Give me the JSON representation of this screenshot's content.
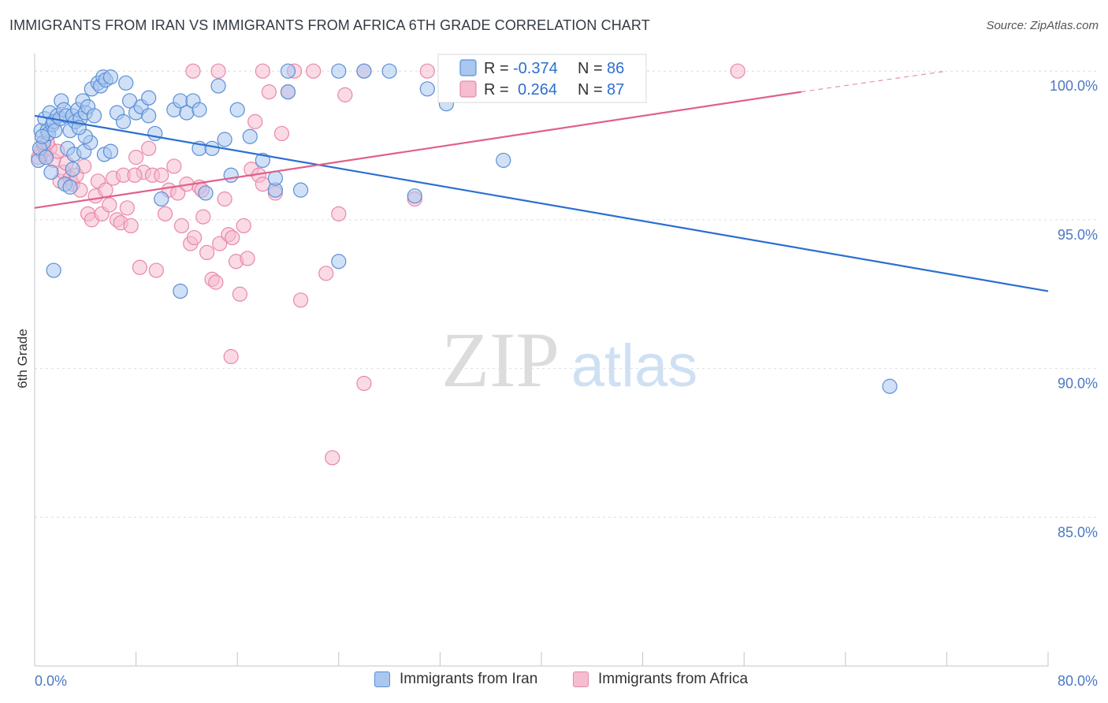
{
  "title": "IMMIGRANTS FROM IRAN VS IMMIGRANTS FROM AFRICA 6TH GRADE CORRELATION CHART",
  "source": "Source: ZipAtlas.com",
  "watermark": {
    "zip": "ZIP",
    "atlas": "atlas"
  },
  "colors": {
    "iran_fill": "#a9c7ef",
    "iran_stroke": "#5b8fd6",
    "iran_line": "#2b6fd0",
    "africa_fill": "#f6bcd0",
    "africa_stroke": "#e888a8",
    "africa_line": "#e0608b",
    "tick_label": "#4a78c4",
    "grid": "#d9dde3"
  },
  "legend": {
    "row1": {
      "r_label": "R =",
      "r_value": "-0.374",
      "n_label": "N =",
      "n_value": "86"
    },
    "row2": {
      "r_label": "R =",
      "r_value": "0.264",
      "n_label": "N =",
      "n_value": "87"
    }
  },
  "bottom_legend": {
    "iran": "Immigrants from Iran",
    "africa": "Immigrants from Africa"
  },
  "chart_data": {
    "type": "scatter",
    "title": "IMMIGRANTS FROM IRAN VS IMMIGRANTS FROM AFRICA 6TH GRADE CORRELATION CHART",
    "xlabel": "",
    "ylabel": "6th Grade",
    "xlim": [
      0,
      80
    ],
    "ylim": [
      80,
      100.8
    ],
    "x_tick_labels": [
      "0.0%",
      "80.0%"
    ],
    "y_ticks": [
      85,
      90,
      95,
      100
    ],
    "y_tick_labels": [
      "85.0%",
      "90.0%",
      "95.0%",
      "100.0%"
    ],
    "grid": true,
    "legend_position": "top-center",
    "series": [
      {
        "name": "Immigrants from Iran",
        "r": -0.374,
        "n": 86,
        "trend": {
          "x0": 0,
          "y0": 98.5,
          "x1": 80,
          "y1": 92.6
        },
        "points": [
          [
            0.3,
            97.0
          ],
          [
            0.5,
            98.0
          ],
          [
            0.7,
            97.6
          ],
          [
            0.8,
            98.4
          ],
          [
            1.0,
            98.0
          ],
          [
            1.1,
            97.9
          ],
          [
            1.2,
            98.6
          ],
          [
            1.4,
            98.2
          ],
          [
            1.5,
            98.3
          ],
          [
            1.6,
            98.0
          ],
          [
            1.8,
            98.5
          ],
          [
            2.0,
            98.4
          ],
          [
            2.1,
            99.0
          ],
          [
            2.3,
            98.7
          ],
          [
            2.5,
            98.5
          ],
          [
            2.8,
            98.0
          ],
          [
            3.0,
            98.5
          ],
          [
            3.2,
            98.3
          ],
          [
            3.4,
            98.7
          ],
          [
            3.6,
            98.4
          ],
          [
            3.8,
            99.0
          ],
          [
            4.0,
            98.6
          ],
          [
            4.2,
            98.8
          ],
          [
            4.5,
            99.4
          ],
          [
            4.7,
            98.5
          ],
          [
            5.0,
            99.6
          ],
          [
            5.2,
            99.5
          ],
          [
            5.4,
            99.8
          ],
          [
            5.6,
            99.7
          ],
          [
            0.4,
            97.4
          ],
          [
            0.9,
            97.1
          ],
          [
            1.3,
            96.6
          ],
          [
            2.6,
            97.4
          ],
          [
            3.1,
            97.2
          ],
          [
            3.9,
            97.3
          ],
          [
            4.4,
            97.6
          ],
          [
            5.5,
            97.2
          ],
          [
            6.0,
            97.3
          ],
          [
            2.4,
            96.2
          ],
          [
            3.0,
            96.7
          ],
          [
            6.5,
            98.6
          ],
          [
            7.0,
            98.3
          ],
          [
            7.2,
            99.6
          ],
          [
            7.5,
            99.0
          ],
          [
            8.0,
            98.6
          ],
          [
            8.4,
            98.8
          ],
          [
            9.0,
            98.5
          ],
          [
            9.5,
            97.9
          ],
          [
            10.0,
            95.7
          ],
          [
            11.0,
            98.7
          ],
          [
            11.5,
            99.0
          ],
          [
            12.0,
            98.6
          ],
          [
            12.5,
            99.0
          ],
          [
            13.0,
            97.4
          ],
          [
            13.5,
            95.9
          ],
          [
            14.0,
            97.4
          ],
          [
            14.5,
            99.5
          ],
          [
            15.0,
            97.7
          ],
          [
            16.0,
            98.7
          ],
          [
            17.0,
            97.8
          ],
          [
            18.0,
            97.0
          ],
          [
            19.0,
            96.0
          ],
          [
            20.0,
            99.3
          ],
          [
            21.0,
            96.0
          ],
          [
            24.0,
            100.0
          ],
          [
            28.0,
            100.0
          ],
          [
            31.0,
            99.4
          ],
          [
            32.5,
            98.9
          ],
          [
            35.0,
            100.0
          ],
          [
            37.0,
            97.0
          ],
          [
            26.0,
            100.0
          ],
          [
            30.0,
            95.8
          ],
          [
            1.5,
            93.3
          ],
          [
            11.5,
            92.6
          ],
          [
            20.0,
            100.0
          ],
          [
            24.0,
            93.6
          ],
          [
            19.0,
            96.4
          ],
          [
            6.0,
            99.8
          ],
          [
            9.0,
            99.1
          ],
          [
            13.0,
            98.7
          ],
          [
            15.5,
            96.5
          ],
          [
            2.8,
            96.1
          ],
          [
            4.0,
            97.8
          ],
          [
            67.5,
            89.4
          ],
          [
            0.6,
            97.8
          ],
          [
            3.5,
            98.1
          ]
        ]
      },
      {
        "name": "Immigrants from Africa",
        "r": 0.264,
        "n": 87,
        "trend": {
          "x0": 0,
          "y0": 95.4,
          "x1": 60.5,
          "y1": 99.3
        },
        "trend_dashed": {
          "x0": 60.5,
          "y0": 99.3,
          "x1": 72,
          "y1": 100.0
        },
        "points": [
          [
            0.3,
            97.1
          ],
          [
            0.5,
            97.3
          ],
          [
            0.7,
            97.5
          ],
          [
            0.9,
            97.2
          ],
          [
            1.2,
            97.4
          ],
          [
            1.5,
            97.0
          ],
          [
            1.8,
            97.3
          ],
          [
            2.0,
            96.3
          ],
          [
            2.3,
            96.6
          ],
          [
            2.5,
            96.9
          ],
          [
            2.8,
            96.4
          ],
          [
            3.0,
            96.2
          ],
          [
            3.3,
            96.5
          ],
          [
            3.6,
            96.0
          ],
          [
            3.9,
            96.8
          ],
          [
            4.2,
            95.2
          ],
          [
            4.5,
            95.0
          ],
          [
            4.8,
            95.8
          ],
          [
            5.0,
            96.3
          ],
          [
            5.3,
            95.2
          ],
          [
            5.6,
            96.0
          ],
          [
            5.9,
            95.5
          ],
          [
            6.2,
            96.4
          ],
          [
            6.5,
            95.0
          ],
          [
            6.8,
            94.9
          ],
          [
            7.0,
            96.5
          ],
          [
            7.3,
            95.4
          ],
          [
            7.6,
            94.8
          ],
          [
            8.0,
            97.1
          ],
          [
            8.3,
            93.4
          ],
          [
            8.6,
            96.6
          ],
          [
            9.0,
            97.4
          ],
          [
            9.3,
            96.5
          ],
          [
            9.6,
            93.3
          ],
          [
            10.0,
            96.5
          ],
          [
            10.3,
            95.2
          ],
          [
            10.6,
            96.0
          ],
          [
            11.0,
            96.8
          ],
          [
            11.3,
            95.9
          ],
          [
            11.6,
            94.8
          ],
          [
            12.0,
            96.2
          ],
          [
            12.3,
            94.2
          ],
          [
            12.6,
            94.4
          ],
          [
            13.0,
            96.1
          ],
          [
            13.3,
            95.1
          ],
          [
            13.6,
            93.9
          ],
          [
            14.0,
            93.0
          ],
          [
            14.3,
            92.9
          ],
          [
            14.6,
            94.2
          ],
          [
            15.0,
            95.7
          ],
          [
            15.3,
            94.5
          ],
          [
            15.6,
            94.4
          ],
          [
            15.9,
            93.6
          ],
          [
            16.2,
            92.5
          ],
          [
            16.5,
            94.8
          ],
          [
            16.8,
            93.7
          ],
          [
            17.1,
            96.7
          ],
          [
            17.4,
            98.3
          ],
          [
            17.7,
            96.5
          ],
          [
            18.0,
            96.2
          ],
          [
            18.5,
            99.3
          ],
          [
            19.0,
            95.9
          ],
          [
            19.5,
            97.9
          ],
          [
            20.0,
            99.3
          ],
          [
            20.5,
            100.0
          ],
          [
            21.0,
            92.3
          ],
          [
            22.0,
            100.0
          ],
          [
            23.0,
            93.2
          ],
          [
            24.0,
            95.2
          ],
          [
            24.5,
            99.2
          ],
          [
            15.5,
            90.4
          ],
          [
            26.0,
            89.5
          ],
          [
            23.5,
            87.0
          ],
          [
            30.0,
            95.7
          ],
          [
            31.0,
            100.0
          ],
          [
            33.0,
            100.0
          ],
          [
            38.5,
            100.0
          ],
          [
            40.0,
            100.0
          ],
          [
            41.0,
            100.0
          ],
          [
            55.5,
            100.0
          ],
          [
            26.0,
            100.0
          ],
          [
            18.0,
            100.0
          ],
          [
            14.5,
            100.0
          ],
          [
            12.5,
            100.0
          ],
          [
            13.2,
            96.0
          ],
          [
            7.9,
            96.5
          ],
          [
            1.0,
            97.6
          ]
        ]
      }
    ]
  }
}
